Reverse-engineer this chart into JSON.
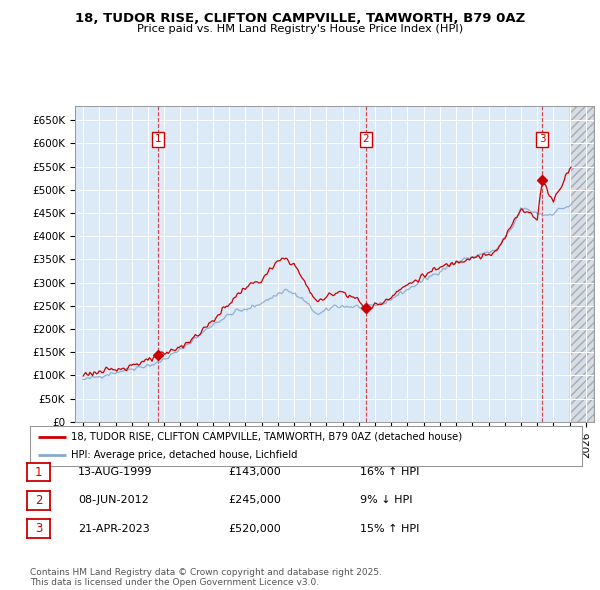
{
  "title": "18, TUDOR RISE, CLIFTON CAMPVILLE, TAMWORTH, B79 0AZ",
  "subtitle": "Price paid vs. HM Land Registry's House Price Index (HPI)",
  "ylim": [
    0,
    680000
  ],
  "yticks": [
    0,
    50000,
    100000,
    150000,
    200000,
    250000,
    300000,
    350000,
    400000,
    450000,
    500000,
    550000,
    600000,
    650000
  ],
  "xlim_start": 1994.5,
  "xlim_end": 2026.5,
  "xticks": [
    1995,
    1996,
    1997,
    1998,
    1999,
    2000,
    2001,
    2002,
    2003,
    2004,
    2005,
    2006,
    2007,
    2008,
    2009,
    2010,
    2011,
    2012,
    2013,
    2014,
    2015,
    2016,
    2017,
    2018,
    2019,
    2020,
    2021,
    2022,
    2023,
    2024,
    2025,
    2026
  ],
  "background_color": "#ffffff",
  "plot_bg_color": "#dce9f7",
  "grid_color": "#ffffff",
  "line1_color": "#cc0000",
  "line2_color": "#88aacc",
  "purchase_dates": [
    1999.617,
    2012.44,
    2023.31
  ],
  "purchase_prices": [
    143000,
    245000,
    520000
  ],
  "purchase_labels": [
    "1",
    "2",
    "3"
  ],
  "legend_line1": "18, TUDOR RISE, CLIFTON CAMPVILLE, TAMWORTH, B79 0AZ (detached house)",
  "legend_line2": "HPI: Average price, detached house, Lichfield",
  "table_data": [
    [
      "1",
      "13-AUG-1999",
      "£143,000",
      "16% ↑ HPI"
    ],
    [
      "2",
      "08-JUN-2012",
      "£245,000",
      "9% ↓ HPI"
    ],
    [
      "3",
      "21-APR-2023",
      "£520,000",
      "15% ↑ HPI"
    ]
  ],
  "footer": "Contains HM Land Registry data © Crown copyright and database right 2025.\nThis data is licensed under the Open Government Licence v3.0."
}
